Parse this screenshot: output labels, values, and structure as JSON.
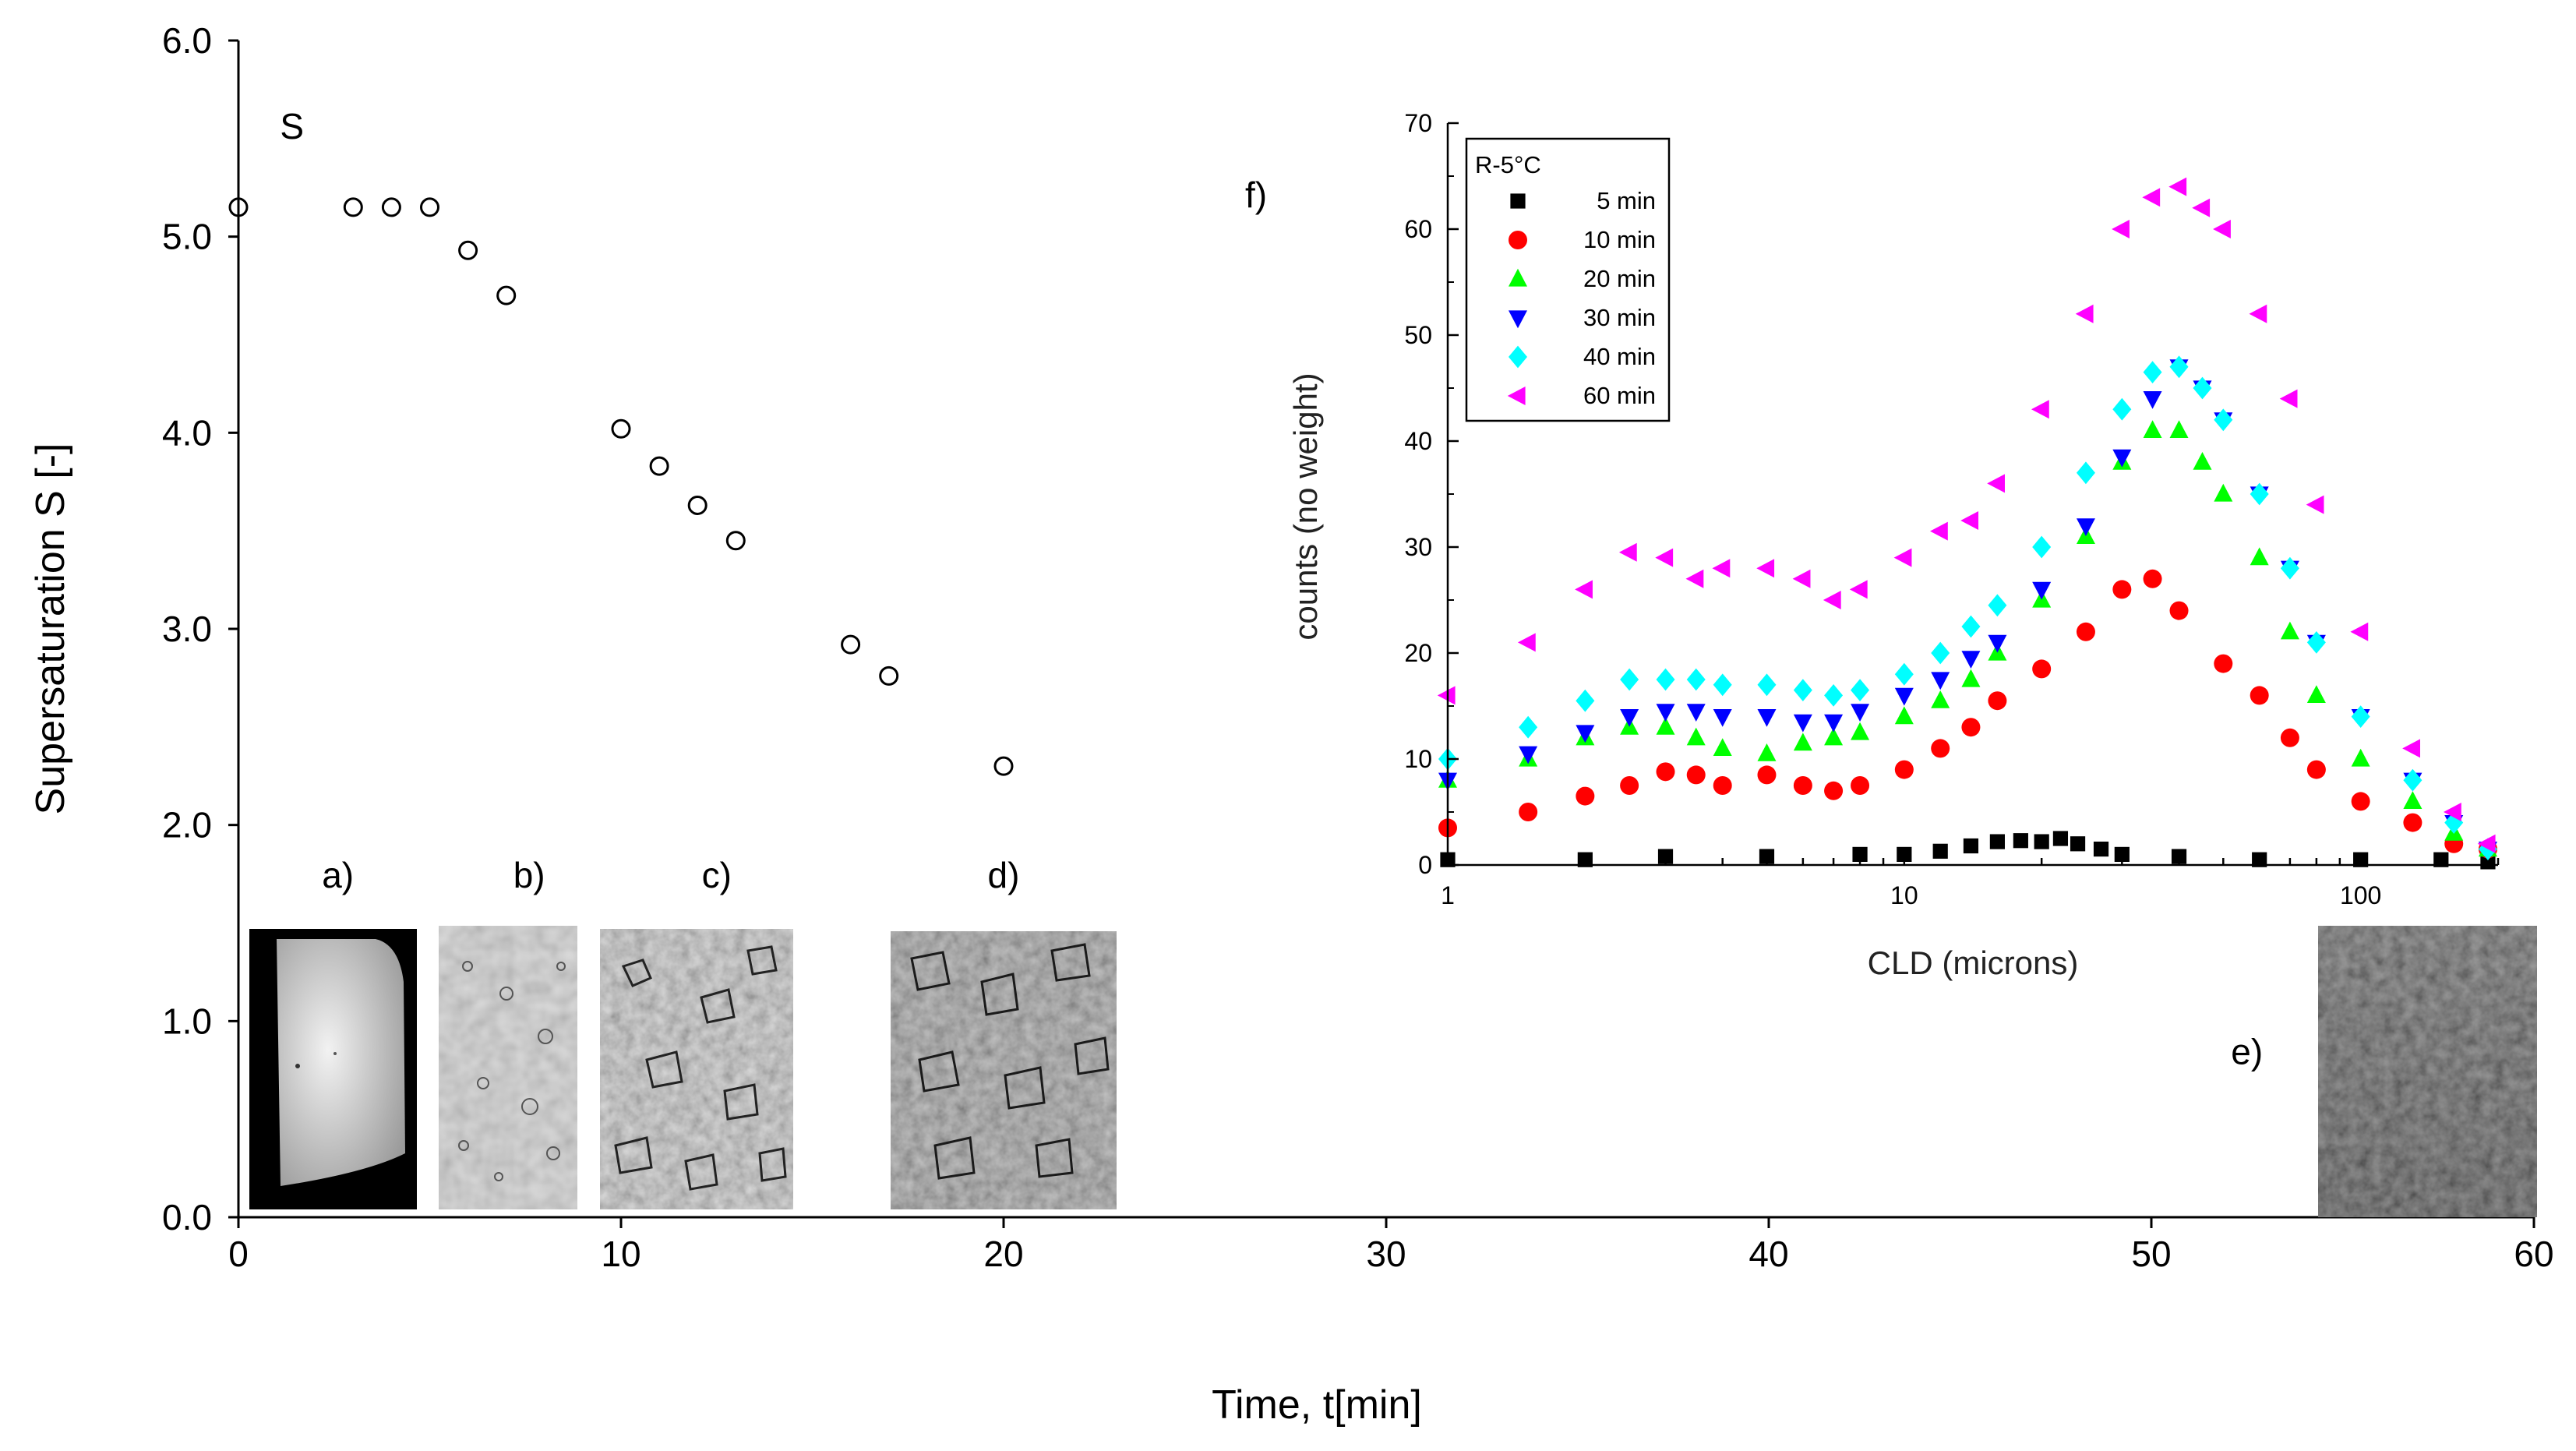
{
  "chart_data": [
    {
      "type": "scatter",
      "name": "supersaturation-vs-time",
      "xlabel": "Time, t[min]",
      "ylabel": "Supersaturation S [-]",
      "xlim": [
        0,
        60
      ],
      "ylim": [
        0,
        6
      ],
      "xticks": [
        0,
        10,
        20,
        30,
        40,
        50,
        60
      ],
      "yticks": [
        0.0,
        1.0,
        2.0,
        3.0,
        4.0,
        5.0,
        6.0
      ],
      "ytick_labels": [
        "0.0",
        "1.0",
        "2.0",
        "3.0",
        "4.0",
        "5.0",
        "6.0"
      ],
      "grid": false,
      "series": [
        {
          "name": "S",
          "marker": "open-circle",
          "x": [
            0,
            3,
            4,
            5,
            6,
            7,
            10,
            11,
            12,
            13,
            16,
            17,
            20
          ],
          "y": [
            5.15,
            5.15,
            5.15,
            5.15,
            4.93,
            4.7,
            4.02,
            3.83,
            3.63,
            3.45,
            2.92,
            2.76,
            2.3
          ]
        }
      ],
      "annotations": [
        {
          "text": "S",
          "x": 1.4,
          "y": 5.5
        },
        {
          "text": "a)",
          "x": 2.6,
          "y": 1.68
        },
        {
          "text": "b)",
          "x": 7.6,
          "y": 1.68
        },
        {
          "text": "c)",
          "x": 12.5,
          "y": 1.68
        },
        {
          "text": "d)",
          "x": 20.0,
          "y": 1.68
        },
        {
          "text": "e)",
          "x": 52.5,
          "y": 0.78
        },
        {
          "text": "f)",
          "x": 26.6,
          "y": 5.15
        }
      ],
      "micrographs": [
        {
          "name": "micrograph-a",
          "label": "a)",
          "x_from": 0.3,
          "x_to": 4.7,
          "y_from": 0.02,
          "y_to": 1.46
        },
        {
          "name": "micrograph-b",
          "label": "b)",
          "x_from": 5.3,
          "x_to": 8.9,
          "y_from": 0.02,
          "y_to": 1.48
        },
        {
          "name": "micrograph-c",
          "label": "c)",
          "x_from": 9.4,
          "x_to": 14.5,
          "y_from": 0.02,
          "y_to": 1.46
        },
        {
          "name": "micrograph-d",
          "label": "d)",
          "x_from": 17.0,
          "x_to": 22.9,
          "y_from": 0.02,
          "y_to": 1.45
        },
        {
          "name": "micrograph-e",
          "label": "e)",
          "x_from": 54.3,
          "x_to": 60.0,
          "y_from": 0.02,
          "y_to": 1.49
        }
      ]
    },
    {
      "type": "scatter",
      "name": "cld-inset",
      "xlabel": "CLD (microns)",
      "ylabel": "counts (no weight)",
      "xscale": "log",
      "xlim": [
        1,
        200
      ],
      "ylim": [
        0,
        70
      ],
      "xticks": [
        1,
        10,
        100
      ],
      "yticks": [
        0,
        10,
        20,
        30,
        40,
        50,
        60,
        70
      ],
      "legend": {
        "title": "R-5°C",
        "position": "top-left"
      },
      "series": [
        {
          "name": "5 min",
          "marker": "square",
          "color": "#000000",
          "x": [
            1,
            2,
            3,
            5,
            8,
            10,
            12,
            14,
            16,
            18,
            20,
            22,
            24,
            27,
            30,
            40,
            60,
            100,
            150,
            190
          ],
          "y": [
            0.5,
            0.5,
            0.8,
            0.8,
            1.0,
            1.0,
            1.3,
            1.8,
            2.2,
            2.3,
            2.2,
            2.5,
            2.0,
            1.5,
            1.0,
            0.8,
            0.5,
            0.5,
            0.5,
            0.3
          ]
        },
        {
          "name": "10 min",
          "marker": "circle",
          "color": "#ff0000",
          "x": [
            1,
            1.5,
            2,
            2.5,
            3,
            3.5,
            4,
            5,
            6,
            7,
            8,
            10,
            12,
            14,
            16,
            20,
            25,
            30,
            35,
            40,
            50,
            60,
            70,
            80,
            100,
            130,
            160,
            190
          ],
          "y": [
            3.5,
            5,
            6.5,
            7.5,
            8.8,
            8.5,
            7.5,
            8.5,
            7.5,
            7,
            7.5,
            9,
            11,
            13,
            15.5,
            18.5,
            22,
            26,
            27,
            24,
            19,
            16,
            12,
            9,
            6,
            4,
            2,
            1.5
          ]
        },
        {
          "name": "20 min",
          "marker": "triangle-up",
          "color": "#00ff00",
          "x": [
            1,
            1.5,
            2,
            2.5,
            3,
            3.5,
            4,
            5,
            6,
            7,
            8,
            10,
            12,
            14,
            16,
            20,
            25,
            30,
            35,
            40,
            45,
            50,
            60,
            70,
            80,
            100,
            130,
            160,
            190
          ],
          "y": [
            8,
            10,
            12,
            13,
            13,
            12,
            11,
            10.5,
            11.5,
            12,
            12.5,
            14,
            15.5,
            17.5,
            20,
            25,
            31,
            38,
            41,
            41,
            38,
            35,
            29,
            22,
            16,
            10,
            6,
            3,
            1.5
          ]
        },
        {
          "name": "30 min",
          "marker": "triangle-down",
          "color": "#0000ff",
          "x": [
            1,
            1.5,
            2,
            2.5,
            3,
            3.5,
            4,
            5,
            6,
            7,
            8,
            10,
            12,
            14,
            16,
            20,
            25,
            30,
            35,
            40,
            45,
            50,
            60,
            70,
            80,
            100,
            130,
            160,
            190
          ],
          "y": [
            8,
            10.5,
            12.5,
            14,
            14.5,
            14.5,
            14,
            14,
            13.5,
            13.5,
            14.5,
            16,
            17.5,
            19.5,
            21,
            26,
            32,
            38.5,
            44,
            47,
            45,
            42,
            35,
            28,
            21,
            14,
            8,
            4,
            1.5
          ]
        },
        {
          "name": "40 min",
          "marker": "diamond",
          "color": "#00ffff",
          "x": [
            1,
            1.5,
            2,
            2.5,
            3,
            3.5,
            4,
            5,
            6,
            7,
            8,
            10,
            12,
            14,
            16,
            20,
            25,
            30,
            35,
            40,
            45,
            50,
            60,
            70,
            80,
            100,
            130,
            160,
            190
          ],
          "y": [
            10,
            13,
            15.5,
            17.5,
            17.5,
            17.5,
            17,
            17,
            16.5,
            16,
            16.5,
            18,
            20,
            22.5,
            24.5,
            30,
            37,
            43,
            46.5,
            47,
            45,
            42,
            35,
            28,
            21,
            14,
            8,
            4,
            1.5
          ]
        },
        {
          "name": "60 min",
          "marker": "triangle-left",
          "color": "#ff00ff",
          "x": [
            1,
            1.5,
            2,
            2.5,
            3,
            3.5,
            4,
            5,
            6,
            7,
            8,
            10,
            12,
            14,
            16,
            20,
            25,
            30,
            35,
            40,
            45,
            50,
            60,
            70,
            80,
            100,
            130,
            160,
            190
          ],
          "y": [
            16,
            21,
            26,
            29.5,
            29,
            27,
            28,
            28,
            27,
            25,
            26,
            29,
            31.5,
            32.5,
            36,
            43,
            52,
            60,
            63,
            64,
            62,
            60,
            52,
            44,
            34,
            22,
            11,
            5,
            2
          ]
        }
      ]
    }
  ]
}
